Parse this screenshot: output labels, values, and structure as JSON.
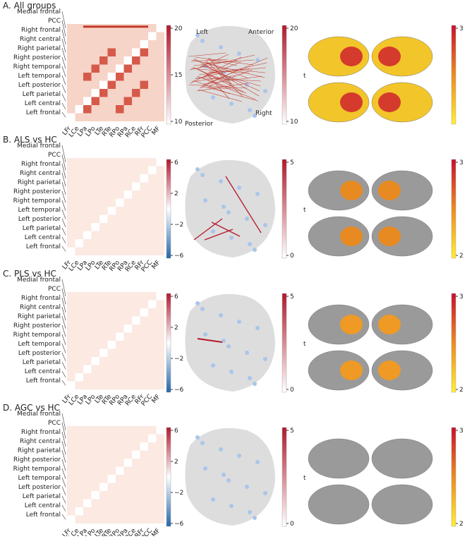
{
  "rows": [
    "Medial frontal",
    "PCC",
    "Right frontal",
    "Right central",
    "Right parietal",
    "Right posterior",
    "Right temporal",
    "Left temporal",
    "Left posterior",
    "Left parietal",
    "Left central",
    "Left frontal"
  ],
  "columns": [
    "LFr",
    "LCe",
    "LPa",
    "LPo",
    "LTe",
    "RTe",
    "RPo",
    "RPa",
    "RCe",
    "RFr",
    "PCC",
    "MF"
  ],
  "colorbar_label": "t",
  "panels": [
    {
      "title": "A. All groups",
      "matrix_ticks": [
        20,
        15,
        10
      ],
      "brain_ticks": [
        20,
        10
      ],
      "surface_ticks": [
        3
      ],
      "brain_labels": [
        "Left",
        "Anterior",
        "Right",
        "Posterior"
      ]
    },
    {
      "title": "B. ALS vs HC",
      "matrix_ticks": [
        6,
        2,
        {
          "value": -2,
          "label": "−2"
        },
        {
          "value": -6,
          "label": "−6"
        }
      ],
      "brain_ticks": [
        5,
        0
      ],
      "surface_ticks": [
        3,
        2
      ]
    },
    {
      "title": "C. PLS vs HC",
      "matrix_ticks": [
        6,
        2,
        {
          "value": -2,
          "label": "−2"
        },
        {
          "value": -6,
          "label": "−6"
        }
      ],
      "brain_ticks": [
        5,
        0
      ],
      "surface_ticks": [
        3,
        2
      ]
    },
    {
      "title": "D. AGC vs HC",
      "matrix_ticks": [
        6,
        2,
        {
          "value": -2,
          "label": "−2"
        },
        {
          "value": -6,
          "label": "−6"
        }
      ],
      "brain_ticks": [
        5,
        0
      ],
      "surface_ticks": [
        3,
        2
      ]
    }
  ]
}
